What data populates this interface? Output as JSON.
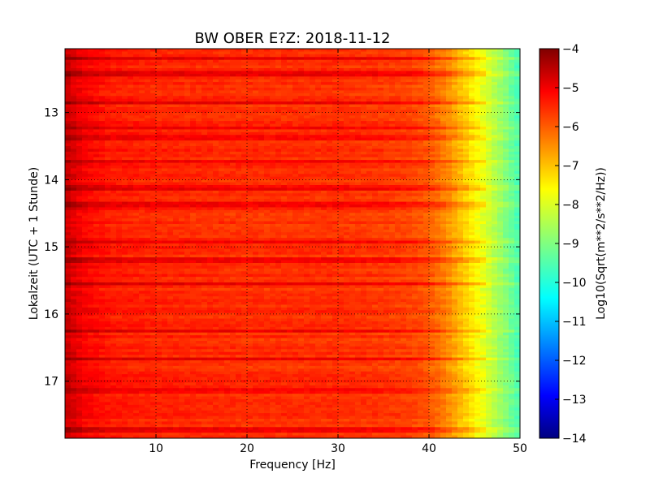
{
  "chart_data": {
    "type": "heatmap",
    "title": "BW OBER E?Z: 2018-11-12",
    "xlabel": "Frequency [Hz]",
    "ylabel": "Lokalzeit (UTC + 1 Stunde)",
    "colorbar_label": "Log10(Sqrt(m**2/s**2/Hz))",
    "colormap": "jet",
    "xlim": [
      0,
      50
    ],
    "ylim": [
      12.05,
      17.85
    ],
    "y_inverted": true,
    "xticks": [
      10,
      20,
      30,
      40,
      50
    ],
    "xtick_labels": [
      "10",
      "20",
      "30",
      "40",
      "50"
    ],
    "yticks": [
      13,
      14,
      15,
      16,
      17
    ],
    "ytick_labels": [
      "13",
      "14",
      "15",
      "16",
      "17"
    ],
    "clim": [
      -14,
      -4
    ],
    "cbar_ticks": [
      -4,
      -5,
      -6,
      -7,
      -8,
      -9,
      -10,
      -11,
      -12,
      -13,
      -14
    ],
    "cbar_tick_labels": [
      "−4",
      "−5",
      "−6",
      "−7",
      "−8",
      "−9",
      "−10",
      "−11",
      "−12",
      "−13",
      "−14"
    ],
    "grid": true,
    "frequency_profile": {
      "frequency_hz": [
        0,
        2,
        5,
        10,
        20,
        25,
        30,
        35,
        38,
        40,
        42,
        44,
        46,
        48,
        50
      ],
      "log10_amplitude": [
        -4.7,
        -5.2,
        -5.5,
        -5.6,
        -5.7,
        -5.7,
        -5.7,
        -5.8,
        -5.9,
        -6.1,
        -6.6,
        -7.3,
        -8.0,
        -8.8,
        -9.6
      ]
    },
    "dark_bands_local_time": [
      12.2,
      12.42,
      12.85,
      13.22,
      13.38,
      13.72,
      14.12,
      14.37,
      14.92,
      15.2,
      15.55,
      16.25,
      16.68,
      17.15,
      17.72
    ]
  }
}
